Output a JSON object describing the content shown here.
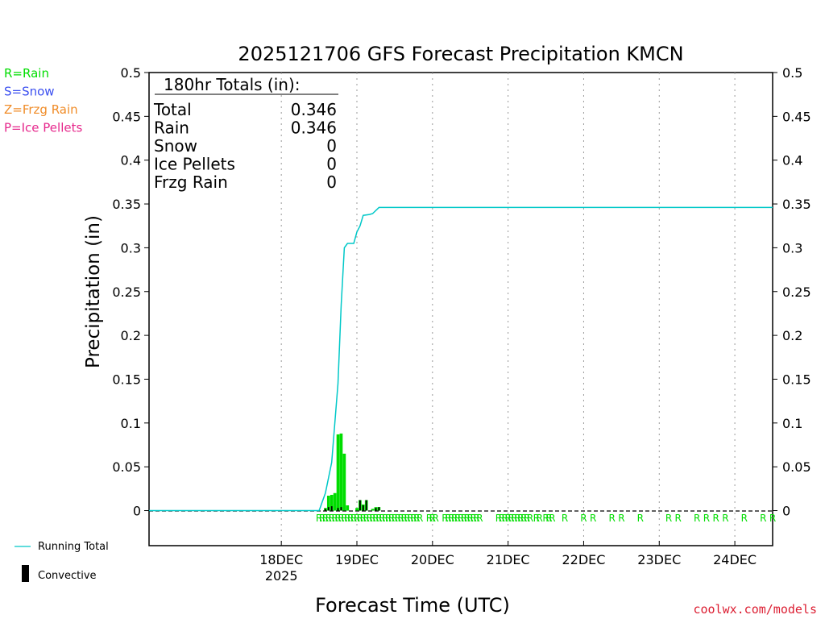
{
  "chart_data": {
    "type": "bar",
    "title": "2025121706 GFS Forecast Precipitation KMCN",
    "xlabel": "Forecast Time (UTC)",
    "ylabel": "Precipitation (in)",
    "ylim": [
      -0.04,
      0.5
    ],
    "yticks": [
      "0",
      "0.05",
      "0.1",
      "0.15",
      "0.2",
      "0.25",
      "0.3",
      "0.35",
      "0.4",
      "0.45",
      "0.5"
    ],
    "ytick_values": [
      0,
      0.05,
      0.1,
      0.15,
      0.2,
      0.25,
      0.3,
      0.35,
      0.4,
      0.45,
      0.5
    ],
    "xlim_hours": [
      -18,
      180
    ],
    "xticks": [
      {
        "hour": 24,
        "label": "18DEC",
        "sub": "2025"
      },
      {
        "hour": 48,
        "label": "19DEC",
        "sub": ""
      },
      {
        "hour": 72,
        "label": "20DEC",
        "sub": ""
      },
      {
        "hour": 96,
        "label": "21DEC",
        "sub": ""
      },
      {
        "hour": 120,
        "label": "22DEC",
        "sub": ""
      },
      {
        "hour": 144,
        "label": "23DEC",
        "sub": ""
      },
      {
        "hour": 168,
        "label": "24DEC",
        "sub": ""
      }
    ],
    "legend_types": [
      {
        "label": "R=Rain",
        "color": "#00dd00"
      },
      {
        "label": "S=Snow",
        "color": "#3c50f0"
      },
      {
        "label": "Z=Frzg Rain",
        "color": "#f08c28"
      },
      {
        "label": "P=Ice Pellets",
        "color": "#e6288c"
      }
    ],
    "legend_lines": [
      {
        "label": "Running Total",
        "color": "#00c8c8"
      },
      {
        "label": "Convective",
        "color": "#000000"
      }
    ],
    "totals": {
      "header": "180hr Totals (in):",
      "rows": [
        {
          "label": "Total",
          "value": "0.346"
        },
        {
          "label": "Rain",
          "value": "0.346"
        },
        {
          "label": "Snow",
          "value": "0"
        },
        {
          "label": "Ice Pellets",
          "value": "0"
        },
        {
          "label": "Frzg Rain",
          "value": "0"
        }
      ]
    },
    "bars_rain": [
      {
        "hour": 38,
        "value": 0.003
      },
      {
        "hour": 39,
        "value": 0.017
      },
      {
        "hour": 40,
        "value": 0.018
      },
      {
        "hour": 41,
        "value": 0.02
      },
      {
        "hour": 42,
        "value": 0.087
      },
      {
        "hour": 43,
        "value": 0.088
      },
      {
        "hour": 44,
        "value": 0.065
      },
      {
        "hour": 45,
        "value": 0.006
      },
      {
        "hour": 48,
        "value": 0.003
      },
      {
        "hour": 49,
        "value": 0.012
      },
      {
        "hour": 50,
        "value": 0.007
      },
      {
        "hour": 51,
        "value": 0.012
      },
      {
        "hour": 53,
        "value": 0.002
      },
      {
        "hour": 54,
        "value": 0.004
      },
      {
        "hour": 55,
        "value": 0.004
      }
    ],
    "bars_convective": [
      {
        "hour": 38,
        "value": 0.002
      },
      {
        "hour": 39,
        "value": 0.004
      },
      {
        "hour": 40,
        "value": 0.005
      },
      {
        "hour": 42,
        "value": 0.003
      },
      {
        "hour": 43,
        "value": 0.004
      },
      {
        "hour": 49,
        "value": 0.012
      },
      {
        "hour": 50,
        "value": 0.006
      },
      {
        "hour": 51,
        "value": 0.012
      },
      {
        "hour": 54,
        "value": 0.003
      },
      {
        "hour": 55,
        "value": 0.004
      }
    ],
    "running_total": [
      [
        -18,
        0
      ],
      [
        36,
        0
      ],
      [
        38,
        0.02
      ],
      [
        40,
        0.055
      ],
      [
        42,
        0.145
      ],
      [
        43,
        0.235
      ],
      [
        44,
        0.3
      ],
      [
        45,
        0.305
      ],
      [
        47,
        0.305
      ],
      [
        48,
        0.318
      ],
      [
        49,
        0.325
      ],
      [
        50,
        0.337
      ],
      [
        52,
        0.338
      ],
      [
        53,
        0.339
      ],
      [
        55,
        0.346
      ],
      [
        180,
        0.346
      ]
    ],
    "rain_marker_hours": [
      36,
      37,
      38,
      39,
      40,
      41,
      42,
      43,
      44,
      45,
      46,
      47,
      48,
      49,
      50,
      51,
      52,
      53,
      54,
      55,
      56,
      57,
      58,
      59,
      60,
      61,
      62,
      63,
      64,
      65,
      66,
      67,
      68,
      71,
      72,
      73,
      76,
      77,
      78,
      79,
      80,
      81,
      82,
      83,
      84,
      85,
      86,
      87,
      93,
      94,
      95,
      96,
      97,
      98,
      99,
      100,
      101,
      102,
      103,
      105,
      106,
      108,
      109,
      110,
      114,
      120,
      123,
      129,
      132,
      138,
      147,
      150,
      156,
      159,
      162,
      165,
      171,
      177,
      180
    ],
    "rain_marker_label": "R",
    "credit": "coolwx.com/models"
  }
}
